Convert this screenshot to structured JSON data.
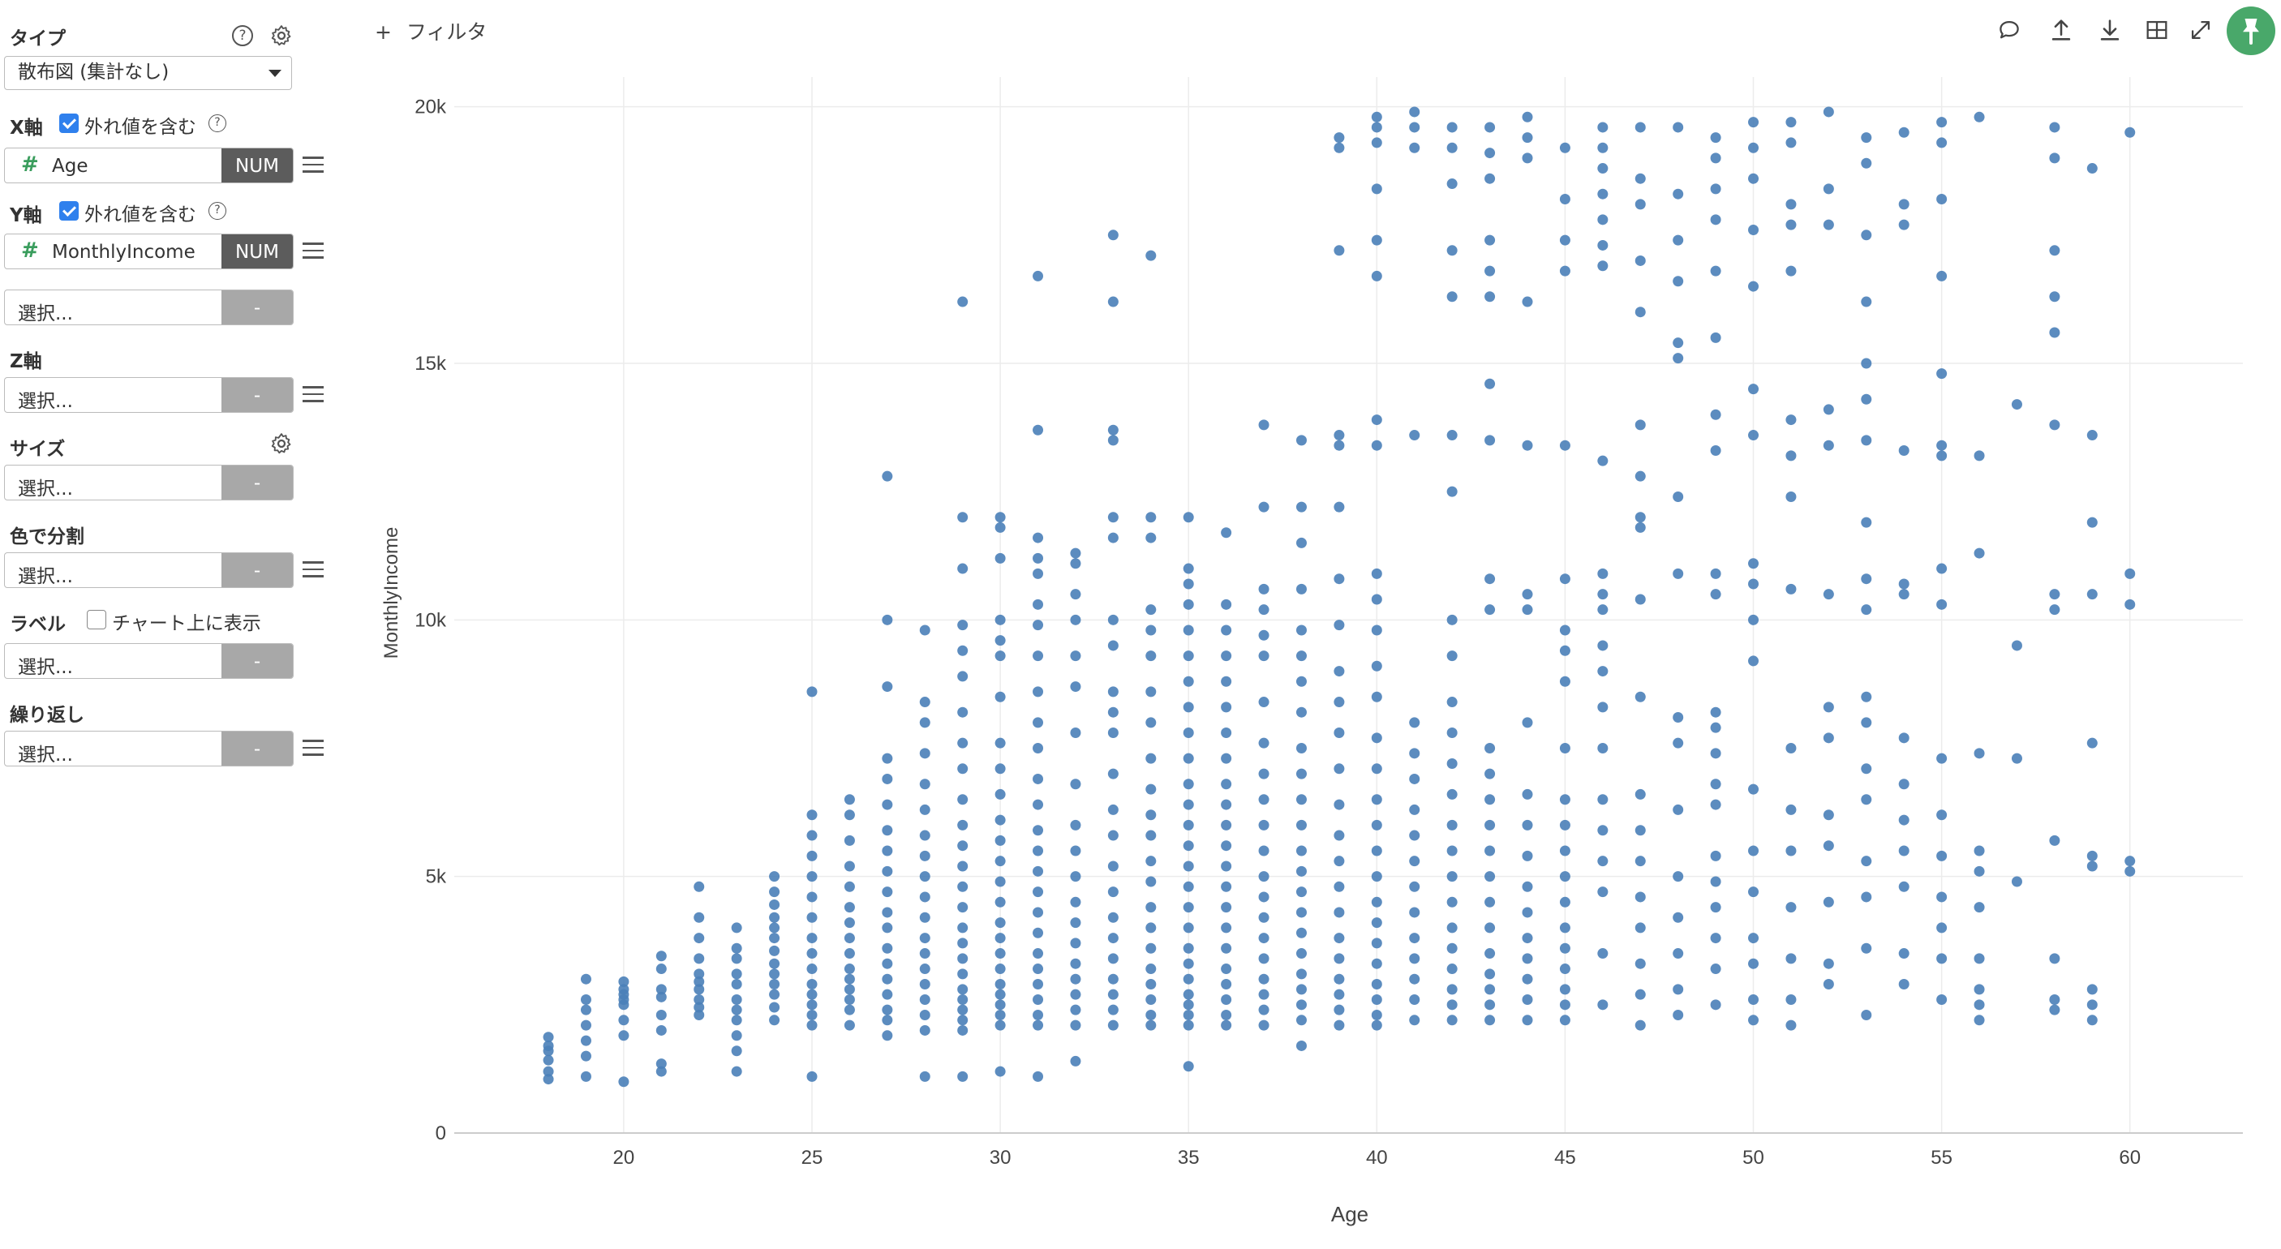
{
  "panel": {
    "type": {
      "title": "タイプ",
      "value": "散布図 (集計なし)"
    },
    "x_axis": {
      "title": "X軸",
      "outliers_label": "外れ値を含む",
      "outliers_checked": true,
      "field": "Age",
      "field_type": "NUM"
    },
    "y_axis": {
      "title": "Y軸",
      "outliers_label": "外れ値を含む",
      "outliers_checked": true,
      "field": "MonthlyIncome",
      "field_type": "NUM",
      "extra_placeholder": "選択...",
      "extra_tag": "-"
    },
    "z_axis": {
      "title": "Z軸",
      "placeholder": "選択...",
      "tag": "-"
    },
    "size": {
      "title": "サイズ",
      "placeholder": "選択...",
      "tag": "-"
    },
    "color": {
      "title": "色で分割",
      "placeholder": "選択...",
      "tag": "-"
    },
    "label": {
      "title": "ラベル",
      "show_label": "チャート上に表示",
      "show_checked": false,
      "placeholder": "選択...",
      "tag": "-"
    },
    "repeat": {
      "title": "繰り返し",
      "placeholder": "選択...",
      "tag": "-"
    },
    "help_glyph": "?"
  },
  "toolbar": {
    "filter_label": "フィルタ",
    "icons": [
      "comment-icon",
      "upload-icon",
      "download-icon",
      "table-icon",
      "expand-icon",
      "pin-icon"
    ]
  },
  "colors": {
    "point": "#4a7fb8",
    "grid": "#ececec",
    "axis": "#cccccc",
    "check": "#2f80ed",
    "pin": "#49a86a",
    "num_tag": "#5c5c5c",
    "empty_tag": "#a8a8a8"
  },
  "chart_data": {
    "type": "scatter",
    "xlabel": "Age",
    "ylabel": "MonthlyIncome",
    "xlim": [
      15.5,
      63
    ],
    "ylim": [
      0,
      20500
    ],
    "xticks": [
      20,
      25,
      30,
      35,
      40,
      45,
      50,
      55,
      60
    ],
    "yticks": [
      0,
      5000,
      10000,
      15000,
      20000
    ],
    "ytick_labels": [
      "0",
      "5k",
      "10k",
      "15k",
      "20k"
    ],
    "grid": true,
    "points_by_age": {
      "18": [
        1050,
        1200,
        1420,
        1600,
        1700,
        1870
      ],
      "19": [
        1100,
        1500,
        1800,
        2100,
        2400,
        2600,
        3000
      ],
      "20": [
        1000,
        1900,
        2200,
        2500,
        2600,
        2700,
        2800,
        2950
      ],
      "21": [
        1200,
        1350,
        2000,
        2300,
        2650,
        2800,
        3200,
        3450
      ],
      "22": [
        2300,
        2450,
        2600,
        2800,
        2950,
        3100,
        3400,
        3800,
        4200,
        4800
      ],
      "23": [
        1200,
        1600,
        1900,
        2200,
        2400,
        2600,
        2900,
        3100,
        3400,
        3600,
        4000
      ],
      "24": [
        2200,
        2450,
        2700,
        2900,
        3100,
        3300,
        3550,
        3800,
        4000,
        4200,
        4450,
        4700,
        5000
      ],
      "25": [
        1100,
        2100,
        2300,
        2500,
        2700,
        2900,
        3200,
        3500,
        3800,
        4200,
        4600,
        5000,
        5400,
        5800,
        6200,
        8600
      ],
      "26": [
        2100,
        2400,
        2600,
        2800,
        3000,
        3200,
        3500,
        3800,
        4100,
        4400,
        4800,
        5200,
        5700,
        6200,
        6500
      ],
      "27": [
        1900,
        2200,
        2400,
        2700,
        3000,
        3300,
        3600,
        4000,
        4300,
        4700,
        5100,
        5500,
        5900,
        6400,
        6900,
        7300,
        8700,
        10000,
        12800
      ],
      "28": [
        1100,
        2000,
        2300,
        2600,
        2900,
        3200,
        3500,
        3800,
        4200,
        4600,
        5000,
        5400,
        5800,
        6300,
        6800,
        7400,
        8000,
        8400,
        9800
      ],
      "29": [
        1100,
        2000,
        2200,
        2400,
        2600,
        2800,
        3100,
        3400,
        3700,
        4000,
        4400,
        4800,
        5200,
        5600,
        6000,
        6500,
        7100,
        7600,
        8200,
        8900,
        9400,
        9900,
        11000,
        12000,
        16200
      ],
      "30": [
        1200,
        2100,
        2300,
        2500,
        2700,
        2900,
        3200,
        3500,
        3800,
        4100,
        4500,
        4900,
        5300,
        5700,
        6100,
        6600,
        7100,
        7600,
        8500,
        9300,
        9600,
        10000,
        11200,
        11800,
        12000
      ],
      "31": [
        1100,
        2100,
        2300,
        2600,
        2900,
        3200,
        3500,
        3900,
        4300,
        4700,
        5100,
        5500,
        5900,
        6400,
        6900,
        7500,
        8000,
        8600,
        9300,
        9900,
        10300,
        10900,
        11200,
        11600,
        13700,
        16700
      ],
      "32": [
        1400,
        2100,
        2400,
        2700,
        3000,
        3300,
        3700,
        4100,
        4500,
        5000,
        5500,
        6000,
        6800,
        7800,
        8700,
        9300,
        10000,
        10500,
        11100,
        11300
      ],
      "33": [
        2100,
        2400,
        2700,
        3000,
        3400,
        3800,
        4200,
        4700,
        5200,
        5800,
        6300,
        7000,
        7800,
        8200,
        8600,
        9500,
        10000,
        11600,
        12000,
        13500,
        13700,
        16200,
        17500
      ],
      "34": [
        2100,
        2300,
        2600,
        2900,
        3200,
        3600,
        4000,
        4400,
        4900,
        5300,
        5800,
        6200,
        6700,
        7300,
        8000,
        8600,
        9300,
        9800,
        10200,
        11600,
        12000,
        17100
      ],
      "35": [
        1300,
        2100,
        2300,
        2500,
        2700,
        3000,
        3300,
        3600,
        4000,
        4400,
        4800,
        5200,
        5600,
        6000,
        6400,
        6800,
        7300,
        7800,
        8300,
        8800,
        9300,
        9800,
        10300,
        10700,
        11000,
        12000
      ],
      "36": [
        2100,
        2300,
        2600,
        2900,
        3200,
        3600,
        4000,
        4400,
        4800,
        5200,
        5600,
        6000,
        6400,
        6800,
        7300,
        7800,
        8300,
        8800,
        9300,
        9800,
        10300,
        11700
      ],
      "37": [
        2100,
        2400,
        2700,
        3000,
        3400,
        3800,
        4200,
        4600,
        5000,
        5500,
        6000,
        6500,
        7000,
        7600,
        8400,
        9300,
        9700,
        10200,
        10600,
        12200,
        13800
      ],
      "38": [
        1700,
        2200,
        2500,
        2800,
        3100,
        3500,
        3900,
        4300,
        4700,
        5100,
        5500,
        6000,
        6500,
        7000,
        7500,
        8200,
        8800,
        9300,
        9800,
        10600,
        11500,
        12200,
        13500
      ],
      "39": [
        2100,
        2400,
        2700,
        3000,
        3400,
        3800,
        4300,
        4800,
        5300,
        5800,
        6400,
        7100,
        7800,
        8400,
        9000,
        9900,
        10800,
        12200,
        13400,
        13600,
        17200,
        19200,
        19400
      ],
      "40": [
        2100,
        2300,
        2600,
        2900,
        3300,
        3700,
        4100,
        4500,
        5000,
        5500,
        6000,
        6500,
        7100,
        7700,
        8500,
        9100,
        9800,
        10400,
        10900,
        13400,
        13900,
        16700,
        17400,
        18400,
        19300,
        19600,
        19800
      ],
      "41": [
        2200,
        2600,
        3000,
        3400,
        3800,
        4300,
        4800,
        5300,
        5800,
        6300,
        6900,
        7400,
        8000,
        13600,
        19200,
        19600,
        19900
      ],
      "42": [
        2200,
        2500,
        2800,
        3200,
        3600,
        4000,
        4500,
        5000,
        5500,
        6000,
        6600,
        7200,
        7800,
        8400,
        9300,
        10000,
        12500,
        13600,
        16300,
        17200,
        18500,
        19200,
        19600
      ],
      "43": [
        2200,
        2500,
        2800,
        3100,
        3500,
        4000,
        4500,
        5000,
        5500,
        6000,
        6500,
        7000,
        7500,
        10200,
        10800,
        13500,
        14600,
        16300,
        16800,
        17400,
        18600,
        19100,
        19600
      ],
      "44": [
        2200,
        2600,
        3000,
        3400,
        3800,
        4300,
        4800,
        5400,
        6000,
        6600,
        8000,
        10200,
        10500,
        13400,
        16200,
        19000,
        19400,
        19800
      ],
      "45": [
        2200,
        2500,
        2800,
        3200,
        3600,
        4000,
        4500,
        5000,
        5500,
        6000,
        6500,
        7500,
        8800,
        9400,
        9800,
        10800,
        13400,
        16800,
        17400,
        18200,
        19200
      ],
      "46": [
        2500,
        3500,
        4700,
        5300,
        5900,
        6500,
        7500,
        8300,
        9000,
        9500,
        10200,
        10500,
        10900,
        13100,
        16900,
        17300,
        17800,
        18300,
        18800,
        19200,
        19600
      ],
      "47": [
        2100,
        2700,
        3300,
        4000,
        4600,
        5300,
        5900,
        6600,
        8500,
        10400,
        11800,
        12000,
        12800,
        13800,
        16000,
        17000,
        18100,
        18600,
        19600
      ],
      "48": [
        2300,
        2800,
        3500,
        4200,
        5000,
        6300,
        7600,
        8100,
        10900,
        12400,
        15100,
        15400,
        16600,
        17400,
        18300,
        19600
      ],
      "49": [
        2500,
        3200,
        3800,
        4400,
        4900,
        5400,
        6400,
        6800,
        7400,
        7900,
        8200,
        10500,
        10900,
        13300,
        14000,
        15500,
        16800,
        17800,
        18400,
        19000,
        19400
      ],
      "50": [
        2200,
        2600,
        3300,
        3800,
        4700,
        5500,
        6700,
        9200,
        10000,
        10700,
        11100,
        13600,
        14500,
        16500,
        17600,
        18600,
        19200,
        19700
      ],
      "51": [
        2100,
        2600,
        3400,
        4400,
        5500,
        6300,
        7500,
        10600,
        12400,
        13200,
        13900,
        16800,
        17700,
        18100,
        19300,
        19700
      ],
      "52": [
        2900,
        3300,
        4500,
        5600,
        6200,
        7700,
        8300,
        10500,
        13400,
        14100,
        17700,
        18400,
        19900
      ],
      "53": [
        2300,
        3600,
        4600,
        5300,
        6500,
        7100,
        8000,
        8500,
        10200,
        10800,
        11900,
        13500,
        14300,
        15000,
        16200,
        17500,
        18900,
        19400
      ],
      "54": [
        2900,
        3500,
        4800,
        5500,
        6100,
        6800,
        7700,
        10500,
        10700,
        13300,
        17700,
        18100,
        19500
      ],
      "55": [
        2600,
        3400,
        4000,
        4600,
        5400,
        6200,
        7300,
        10300,
        11000,
        13200,
        13400,
        14800,
        16700,
        18200,
        19300,
        19700
      ],
      "56": [
        2200,
        2500,
        2800,
        3400,
        4400,
        5100,
        5500,
        7400,
        11300,
        13200,
        19800
      ],
      "57": [
        4900,
        7300,
        9500,
        14200
      ],
      "58": [
        2400,
        2600,
        3400,
        5700,
        10200,
        10500,
        13800,
        15600,
        16300,
        17200,
        19000,
        19600
      ],
      "59": [
        2200,
        2500,
        2800,
        5200,
        5400,
        7600,
        10500,
        11900,
        13600,
        18800
      ],
      "60": [
        5100,
        5300,
        10300,
        10900,
        19500
      ]
    }
  }
}
